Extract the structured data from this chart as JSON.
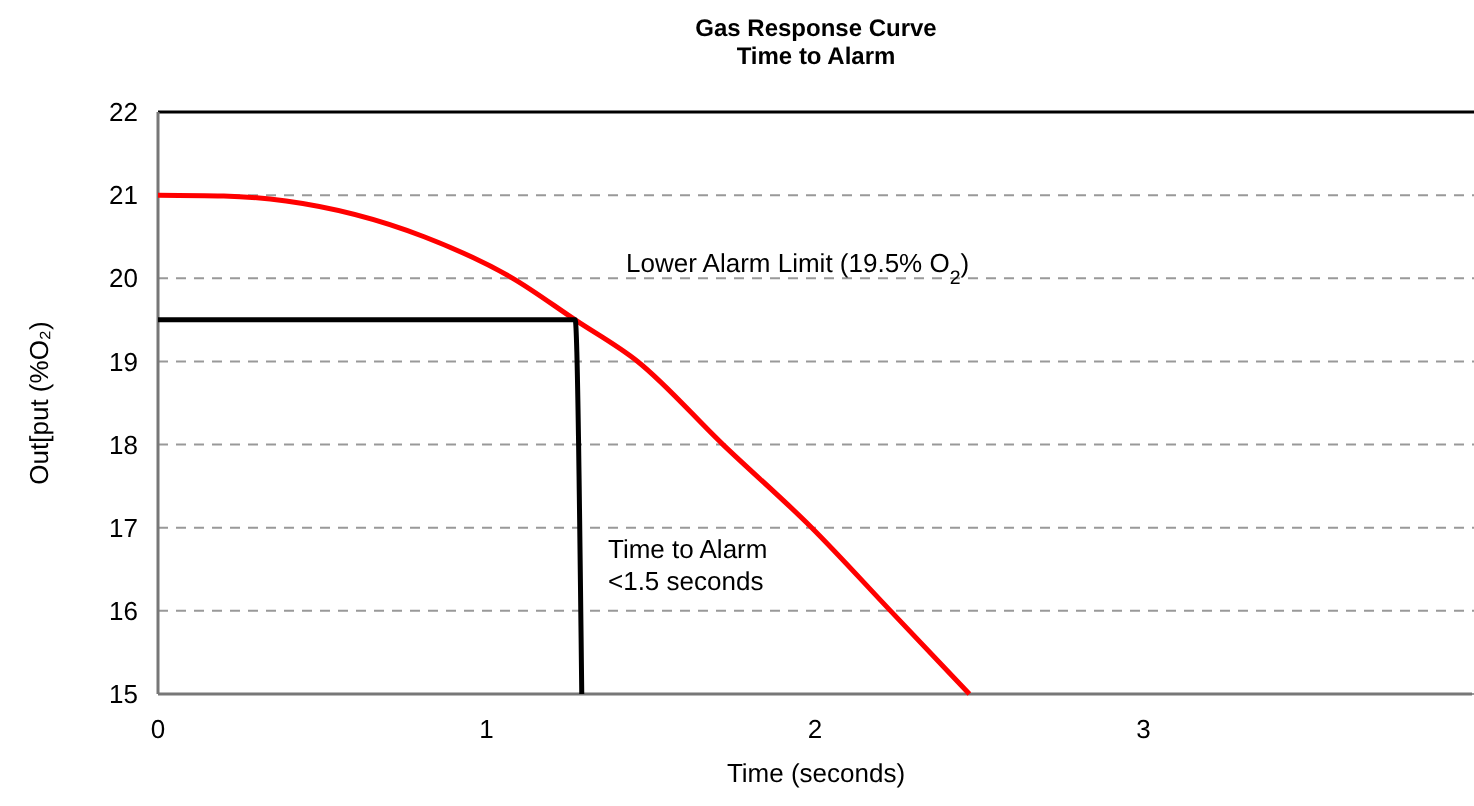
{
  "chart_data": {
    "type": "line",
    "title": "Gas Response Curve",
    "subtitle": "Time to Alarm",
    "xlabel": "Time (seconds)",
    "ylabel": "Out[put (%O₂)",
    "xlim": [
      0,
      4
    ],
    "xticks": [
      0,
      1,
      2,
      3
    ],
    "ylim": [
      15,
      22
    ],
    "yticks": [
      15,
      16,
      17,
      18,
      19,
      20,
      21,
      22
    ],
    "grid": "y",
    "marker": "none",
    "series": [
      {
        "color": "#ff0000",
        "x": [
          0,
          0.2,
          0.39,
          0.81,
          1.08,
          1.27,
          1.46,
          1.72,
          1.99,
          2.23,
          2.47
        ],
        "values": [
          21,
          20.99,
          20.93,
          20.5,
          20,
          19.5,
          19,
          18,
          17,
          16,
          15
        ]
      },
      {
        "color": "#000000",
        "x": [
          0,
          1.27,
          1.29
        ],
        "values": [
          19.5,
          19.5,
          15
        ]
      }
    ],
    "annotations": [
      "Lower Alarm Limit (19.5% O$_{2}$)",
      "Time to Alarm\n<1.5 seconds"
    ]
  }
}
